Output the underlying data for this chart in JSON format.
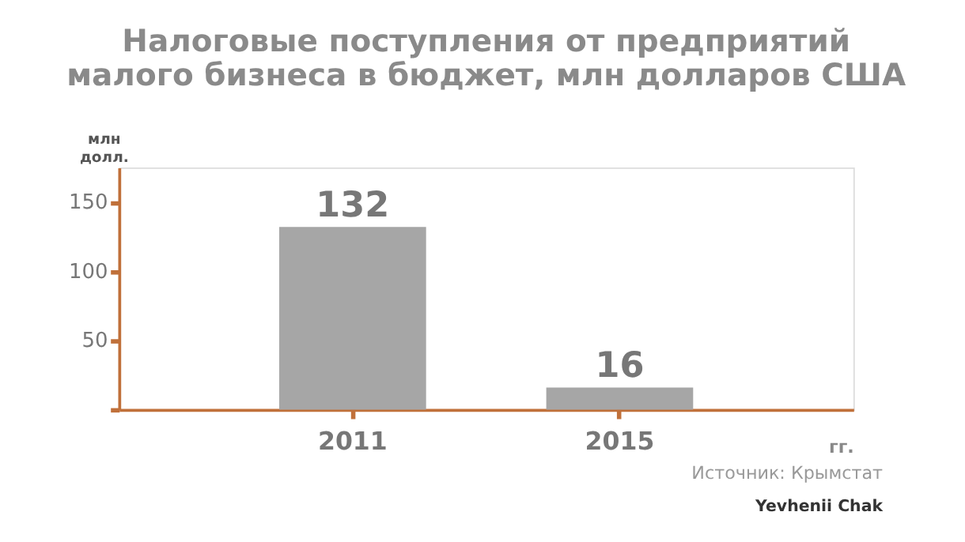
{
  "chart_data": {
    "type": "bar",
    "title": [
      "Налоговые поступления от предприятий",
      "малого бизнеса в бюджет, млн долларов США"
    ],
    "categories": [
      "2011",
      "2015"
    ],
    "values": [
      132,
      16
    ],
    "color": "#a6a6a6",
    "ylim": [
      0,
      175
    ],
    "yticks": [
      {
        "value": 0,
        "label": null
      },
      50,
      100,
      150
    ],
    "ylabel": "млн долл.",
    "xlabel": "гг.",
    "data_labels": true,
    "grid": false,
    "annotations": [
      "Источник: Крымстат",
      "Yevhenii Chak"
    ]
  }
}
